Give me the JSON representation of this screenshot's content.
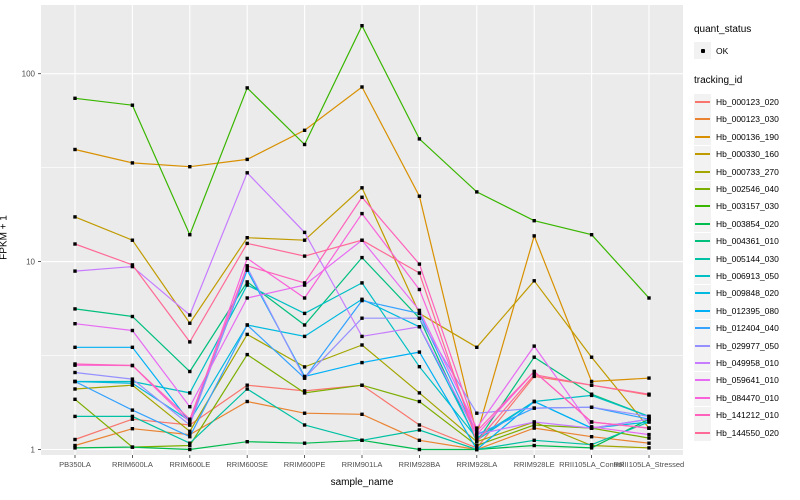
{
  "figure": {
    "bg": "#FFFFFF",
    "panel_bg": "#EBEBEB",
    "grid_color": "#FFFFFF",
    "tick_color": "#333333",
    "tick_label_color": "#4D4D4D",
    "point_color": "#000000",
    "legend_key_bg": "#F2F2F2"
  },
  "chart_data": {
    "type": "line",
    "title": "",
    "xlabel": "sample_name",
    "ylabel": "FPKM + 1",
    "yscale": "log10",
    "ylim": [
      1,
      230
    ],
    "yticks": [
      "1",
      "10",
      "100"
    ],
    "ytick_values": [
      1,
      10,
      100
    ],
    "yminor_values": [
      3.1623,
      31.623
    ],
    "grid": true,
    "legend_position": "right",
    "categories": [
      "PB350LA",
      "RRIM600LA",
      "RRIM600LE",
      "RRIM600SE",
      "RRIM600PE",
      "RRIM901LA",
      "RRIM928BA",
      "RRIM928LA",
      "RRIM928LE",
      "RRII105LA_Control",
      "RRII105LA_Stressed"
    ],
    "legend": {
      "quant_status": {
        "title": "quant_status",
        "items": [
          {
            "label": "OK",
            "marker": "point"
          }
        ]
      },
      "tracking_id": {
        "title": "tracking_id"
      }
    },
    "series": [
      {
        "name": "Hb_000123_020",
        "color": "#F8766D",
        "values": [
          1.13,
          1.45,
          1.35,
          2.2,
          2.05,
          2.2,
          1.35,
          1.02,
          2.45,
          2.2,
          1.95
        ]
      },
      {
        "name": "Hb_000123_030",
        "color": "#EA8331",
        "values": [
          1.05,
          1.29,
          1.2,
          1.8,
          1.56,
          1.54,
          1.12,
          1.0,
          1.3,
          1.17,
          1.08
        ]
      },
      {
        "name": "Hb_000136_190",
        "color": "#D89000",
        "values": [
          39.5,
          33.5,
          32,
          35,
          50,
          85,
          22.3,
          1.2,
          13.7,
          2.3,
          2.4
        ]
      },
      {
        "name": "Hb_000330_160",
        "color": "#C09B00",
        "values": [
          17.3,
          13,
          4.7,
          13.4,
          13,
          24.7,
          5.3,
          3.5,
          7.9,
          3.1,
          1.3
        ]
      },
      {
        "name": "Hb_000733_270",
        "color": "#A3A500",
        "values": [
          2.1,
          2.2,
          1.25,
          4.1,
          2.75,
          3.6,
          2.0,
          1.1,
          1.4,
          1.05,
          1.02
        ]
      },
      {
        "name": "Hb_002546_040",
        "color": "#7CAE00",
        "values": [
          1.85,
          1.03,
          1.05,
          3.2,
          2.0,
          2.2,
          1.8,
          1.05,
          1.35,
          1.3,
          1.15
        ]
      },
      {
        "name": "Hb_003157_030",
        "color": "#39B600",
        "values": [
          74,
          68,
          13.9,
          84,
          42,
          180,
          45,
          23.5,
          16.5,
          13.9,
          6.4
        ]
      },
      {
        "name": "Hb_003854_020",
        "color": "#00BB4E",
        "values": [
          1.02,
          1.03,
          1.0,
          1.1,
          1.08,
          1.12,
          1.0,
          1.0,
          1.05,
          1.02,
          1.45
        ]
      },
      {
        "name": "Hb_004361_010",
        "color": "#00BF7D",
        "values": [
          5.6,
          5.1,
          2.6,
          7.8,
          4.6,
          10.5,
          5.0,
          1.1,
          3.1,
          1.97,
          1.5
        ]
      },
      {
        "name": "Hb_005144_030",
        "color": "#00C1A3",
        "values": [
          1.5,
          1.5,
          1.08,
          2.1,
          1.35,
          1.12,
          1.27,
          1.0,
          1.12,
          1.06,
          1.4
        ]
      },
      {
        "name": "Hb_006913_050",
        "color": "#00BFC4",
        "values": [
          2.3,
          2.3,
          2.0,
          7.5,
          5.3,
          7.7,
          2.76,
          1.15,
          1.8,
          1.94,
          1.5
        ]
      },
      {
        "name": "Hb_009848_020",
        "color": "#00BAE0",
        "values": [
          2.3,
          2.25,
          1.42,
          4.6,
          4.0,
          6.3,
          4.5,
          1.12,
          1.8,
          1.3,
          1.4
        ]
      },
      {
        "name": "Hb_012395_080",
        "color": "#00B0F6",
        "values": [
          3.5,
          3.5,
          1.4,
          9.0,
          2.45,
          2.9,
          3.3,
          1.0,
          1.8,
          1.3,
          1.45
        ]
      },
      {
        "name": "Hb_012404_040",
        "color": "#35A2FF",
        "values": [
          2.3,
          1.62,
          1.17,
          4.6,
          2.4,
          6.2,
          5.3,
          1.2,
          1.66,
          1.68,
          1.45
        ]
      },
      {
        "name": "Hb_029977_050",
        "color": "#9590FF",
        "values": [
          2.57,
          2.37,
          1.35,
          9.3,
          2.4,
          5.0,
          5.0,
          1.56,
          1.66,
          1.68,
          1.5
        ]
      },
      {
        "name": "Hb_049958_010",
        "color": "#C77CFF",
        "values": [
          8.9,
          9.4,
          5.2,
          29.7,
          14.3,
          4.0,
          4.5,
          1.2,
          1.4,
          1.3,
          1.45
        ]
      },
      {
        "name": "Hb_059641_010",
        "color": "#E76BF3",
        "values": [
          4.67,
          4.3,
          1.69,
          6.4,
          7.5,
          13.0,
          5.5,
          1.3,
          3.55,
          1.32,
          1.2
        ]
      },
      {
        "name": "Hb_084470_010",
        "color": "#FA62DB",
        "values": [
          2.81,
          2.8,
          1.4,
          10.4,
          6.4,
          18,
          7.1,
          1.2,
          2.6,
          1.4,
          1.3
        ]
      },
      {
        "name": "Hb_141212_010",
        "color": "#FF62BC",
        "values": [
          2.85,
          2.8,
          1.45,
          9.5,
          7.7,
          22,
          9.7,
          1.25,
          2.6,
          1.4,
          1.3
        ]
      },
      {
        "name": "Hb_144550_020",
        "color": "#FF6A98",
        "values": [
          12.4,
          9.6,
          3.74,
          12.5,
          10.7,
          13.0,
          8.7,
          1.1,
          2.5,
          2.2,
          1.97
        ]
      }
    ]
  }
}
